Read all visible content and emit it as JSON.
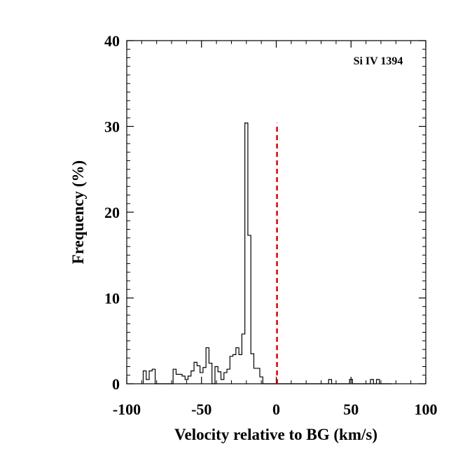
{
  "chart_data": {
    "type": "histogram",
    "title": "",
    "xlabel": "Velocity relative to BG (km/s)",
    "ylabel": "Frequency (%)",
    "annotation": "Si IV 1394",
    "xlim": [
      -100,
      100
    ],
    "ylim": [
      0,
      40
    ],
    "xticks": [
      -100,
      -50,
      0,
      50,
      100
    ],
    "yticks": [
      0,
      10,
      20,
      30,
      40
    ],
    "xtick_labels": [
      "-100",
      "-50",
      "0",
      "50",
      "100"
    ],
    "ytick_labels": [
      "0",
      "10",
      "20",
      "30",
      "40"
    ],
    "grid": false,
    "reference_line": {
      "x": 0.5,
      "style": "dashed",
      "color": "#dd0000"
    },
    "step_series": {
      "name": "Si IV 1394",
      "color": "#000000",
      "x": [
        -80,
        -78,
        -76,
        -74,
        -72,
        -70,
        -68,
        -66,
        -64,
        -62,
        -60,
        -58,
        -56,
        -54,
        -52,
        -50,
        -48,
        -46,
        -44,
        -42,
        -40,
        -38,
        -36,
        -34,
        -32,
        -30,
        -28,
        -26,
        -24,
        -22,
        -20,
        -18,
        -16,
        -14,
        -12,
        -10,
        -8,
        -6,
        -4,
        -2,
        0,
        2,
        4,
        6,
        8,
        10,
        12,
        14,
        16,
        18,
        20,
        22,
        24,
        26,
        28,
        30,
        32,
        34,
        36,
        38,
        40,
        42,
        44,
        46,
        48,
        50,
        52,
        54,
        56,
        58,
        60,
        62,
        64,
        66,
        68,
        70,
        72,
        74,
        76,
        78,
        80,
        82,
        84
      ],
      "y": [
        1.5,
        0.5,
        1.5,
        1.7,
        0,
        0,
        0,
        0,
        0,
        0,
        1.7,
        1.1,
        1.1,
        0.9,
        0.5,
        0.9,
        1.5,
        2.5,
        2.1,
        1.3,
        1.9,
        4.2,
        2.4,
        0,
        2.0,
        1.4,
        0.5,
        1.3,
        1.7,
        3.2,
        3.4,
        4.2,
        3.4,
        5.8,
        30.4,
        17.3,
        3.5,
        1.8,
        1.8,
        0.8,
        0,
        0,
        0,
        0,
        0,
        0,
        0,
        0,
        0,
        0,
        0,
        0,
        0,
        0,
        0,
        0,
        0,
        0,
        0,
        0,
        0,
        0,
        0.5,
        0,
        0,
        0,
        0,
        0,
        0,
        0.5,
        0,
        0,
        0,
        0,
        0,
        0,
        0.5,
        0,
        0.5,
        0,
        0,
        0,
        0
      ],
      "x_shift": -9
    }
  }
}
